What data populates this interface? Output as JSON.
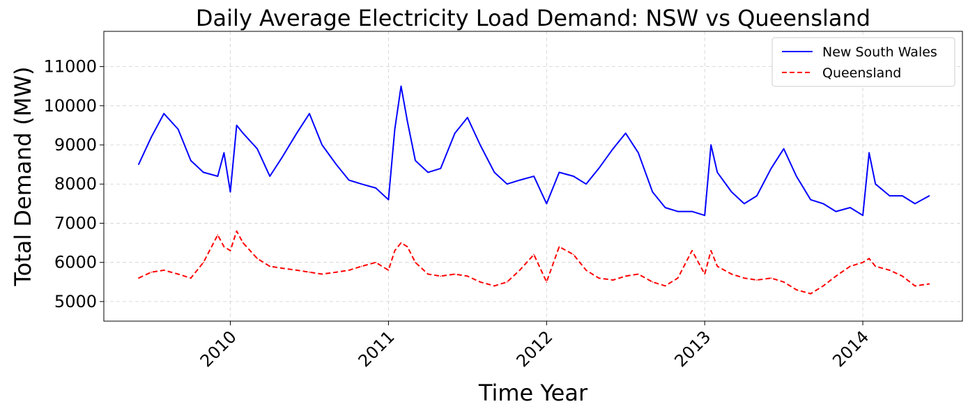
{
  "chart_data": {
    "type": "line",
    "title": "Daily Average Electricity Load Demand: NSW vs Queensland",
    "xlabel": "Time Year",
    "ylabel": "Total Demand (MW)",
    "xlim": [
      2009.2,
      2014.63
    ],
    "ylim": [
      4500,
      11900
    ],
    "x_ticks": [
      2010,
      2011,
      2012,
      2013,
      2014
    ],
    "x_tick_labels": [
      "2010",
      "2011",
      "2012",
      "2013",
      "2014"
    ],
    "y_ticks": [
      5000,
      6000,
      7000,
      8000,
      9000,
      10000,
      11000
    ],
    "y_tick_labels": [
      "5000",
      "6000",
      "7000",
      "8000",
      "9000",
      "10000",
      "11000"
    ],
    "grid": true,
    "legend_position": "top-right",
    "series": [
      {
        "name": "New South Wales",
        "color": "#0000ff",
        "style": "solid",
        "x": [
          2009.42,
          2009.5,
          2009.58,
          2009.67,
          2009.75,
          2009.83,
          2009.92,
          2009.96,
          2010.0,
          2010.04,
          2010.08,
          2010.17,
          2010.25,
          2010.33,
          2010.42,
          2010.5,
          2010.58,
          2010.67,
          2010.75,
          2010.83,
          2010.92,
          2011.0,
          2011.04,
          2011.08,
          2011.12,
          2011.17,
          2011.25,
          2011.33,
          2011.42,
          2011.5,
          2011.58,
          2011.67,
          2011.75,
          2011.83,
          2011.92,
          2012.0,
          2012.08,
          2012.17,
          2012.25,
          2012.33,
          2012.42,
          2012.5,
          2012.58,
          2012.67,
          2012.75,
          2012.83,
          2012.92,
          2013.0,
          2013.04,
          2013.08,
          2013.17,
          2013.25,
          2013.33,
          2013.42,
          2013.5,
          2013.58,
          2013.67,
          2013.75,
          2013.83,
          2013.92,
          2014.0,
          2014.04,
          2014.08,
          2014.17,
          2014.25,
          2014.33,
          2014.42
        ],
        "values": [
          8500,
          9200,
          9800,
          9400,
          8600,
          8300,
          8200,
          8800,
          7800,
          9500,
          9300,
          8900,
          8200,
          8700,
          9300,
          9800,
          9000,
          8500,
          8100,
          8000,
          7900,
          7600,
          9400,
          10500,
          9600,
          8600,
          8300,
          8400,
          9300,
          9700,
          9000,
          8300,
          8000,
          8100,
          8200,
          7500,
          8300,
          8200,
          8000,
          8400,
          8900,
          9300,
          8800,
          7800,
          7400,
          7300,
          7300,
          7200,
          9000,
          8300,
          7800,
          7500,
          7700,
          8400,
          8900,
          8200,
          7600,
          7500,
          7300,
          7400,
          7200,
          8800,
          8000,
          7700,
          7700,
          7500,
          7700
        ]
      },
      {
        "name": "Queensland",
        "color": "#ff0000",
        "style": "dashed",
        "x": [
          2009.42,
          2009.5,
          2009.58,
          2009.67,
          2009.75,
          2009.83,
          2009.92,
          2009.96,
          2010.0,
          2010.04,
          2010.08,
          2010.17,
          2010.25,
          2010.33,
          2010.42,
          2010.5,
          2010.58,
          2010.67,
          2010.75,
          2010.83,
          2010.92,
          2011.0,
          2011.04,
          2011.08,
          2011.12,
          2011.17,
          2011.25,
          2011.33,
          2011.42,
          2011.5,
          2011.58,
          2011.67,
          2011.75,
          2011.83,
          2011.92,
          2012.0,
          2012.08,
          2012.17,
          2012.25,
          2012.33,
          2012.42,
          2012.5,
          2012.58,
          2012.67,
          2012.75,
          2012.83,
          2012.92,
          2013.0,
          2013.04,
          2013.08,
          2013.17,
          2013.25,
          2013.33,
          2013.42,
          2013.5,
          2013.58,
          2013.67,
          2013.75,
          2013.83,
          2013.92,
          2014.0,
          2014.04,
          2014.08,
          2014.17,
          2014.25,
          2014.33,
          2014.42
        ],
        "values": [
          5600,
          5750,
          5800,
          5700,
          5600,
          6000,
          6700,
          6400,
          6300,
          6800,
          6500,
          6100,
          5900,
          5850,
          5800,
          5750,
          5700,
          5750,
          5800,
          5900,
          6000,
          5800,
          6300,
          6500,
          6400,
          6000,
          5700,
          5650,
          5700,
          5650,
          5500,
          5400,
          5500,
          5800,
          6200,
          5500,
          6400,
          6200,
          5800,
          5600,
          5550,
          5650,
          5700,
          5500,
          5400,
          5600,
          6300,
          5700,
          6300,
          5900,
          5700,
          5600,
          5550,
          5600,
          5500,
          5300,
          5200,
          5400,
          5650,
          5900,
          6000,
          6100,
          5900,
          5800,
          5650,
          5400,
          5450
        ]
      }
    ]
  }
}
